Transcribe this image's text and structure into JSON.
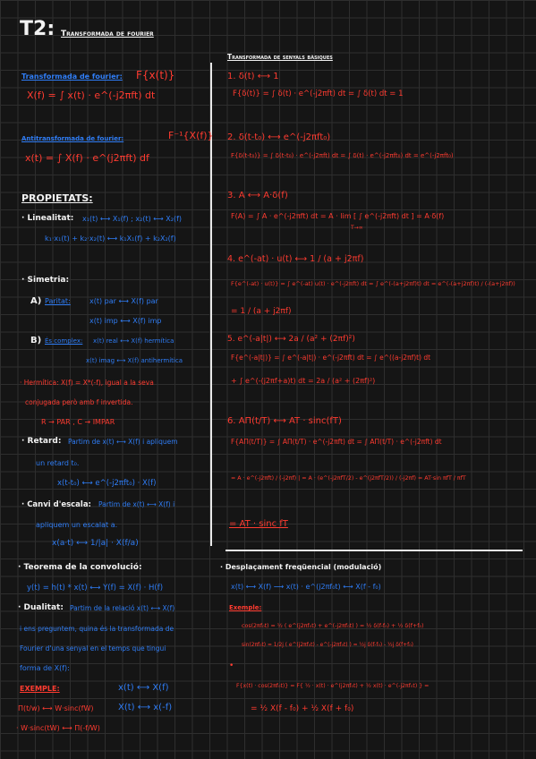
{
  "title": {
    "main": "T2:",
    "sub": "Transformada de fourier"
  },
  "left": {
    "ft_label": "Transformada de fourier:",
    "ft_symbol": "F{x(t)}",
    "ft_formula": "X(f) = ∫ x(t) · e^(-j2πft) dt",
    "ift_label": "Antitransformada de fourier:",
    "ift_symbol": "F⁻¹{X(f)}",
    "ift_formula": "x(t) = ∫ X(f) · e^(j2πft) df",
    "prop_title": "PROPIETATS:",
    "lin_label": "· Linealitat:",
    "lin_line1": "x₁(t) ⟷ X₁(f) ; x₂(t) ⟷ X₂(f)",
    "lin_line2": "k₁·x₁(t) + k₂·x₂(t) ⟷ k₁X₁(f) + k₂X₂(f)",
    "sim_label": "· Simetria:",
    "a_label": "A)",
    "a_title": "Paritat:",
    "a_line1": "x(t) par ⟷ X(f) par",
    "a_line2": "x(t) imp ⟷ X(f) imp",
    "b_label": "B)",
    "b_title": "És complex:",
    "b_line1": "x(t) real ⟷ X(f) hermítica",
    "b_line2": "x(t) imag ⟷ X(f) antihermítica",
    "herm_line1": "· Hermítica: X(f) = X*(-f), igual a la seva",
    "herm_line2": "conjugada però amb f invertida.",
    "herm_line3": "R → PAR , C → IMPAR",
    "ret_label": "· Retard:",
    "ret_line1": "Partim de x(t) ⟷ X(f) i apliquem",
    "ret_line2": "un retard t₀.",
    "ret_line3": "x(t-t₀) ⟷ e^(-j2πft₀) · X(f)",
    "esc_label": "· Canvi d'escala:",
    "esc_line1": "Partim de x(t) ⟷ X(f) i",
    "esc_line2": "apliquem un escalat a.",
    "esc_line3": "x(a·t) ⟷ 1/|a| · X(f/a)"
  },
  "right": {
    "title": "Transformada de senyals bàsiques",
    "i1_head": "1. δ(t) ⟷ 1",
    "i1_formula": "F{δ(t)} = ∫ δ(t) · e^(-j2πft) dt = ∫ δ(t) dt = 1",
    "i2_head": "2. δ(t-t₀) ⟷ e^(-j2πft₀)",
    "i2_formula": "F{δ(t-t₀)} = ∫ δ(t-t₀) · e^(-j2πft) dt = ∫ δ(t) · e^(-j2πft₀) dt = e^(-j2πft₀)",
    "i3_head": "3. A ⟷ A·δ(f)",
    "i3_formula": "F(A) = ∫ A · e^(-j2πft) dt = A · lim [ ∫ e^(-j2πft) dt ] = A·δ(f)",
    "i3_limit": "T→∞",
    "i4_head": "4. e^(-at) · u(t) ⟷ 1 / (a + j2πf)",
    "i4_formula": "F{e^(-at) · u(t)} = ∫ e^(-at) u(t) · e^(-j2πft) dt = ∫ e^(-(a+j2πf)t) dt = e^(-(a+j2πf)t) / (-(a+j2πf))",
    "i4_result": "= 1 / (a + j2πf)",
    "i5_head": "5. e^(-a|t|) ⟷ 2a / (a² + (2πf)²)",
    "i5_formula": "F{e^(-a|t|)} = ∫ e^(-a|t|) · e^(-j2πft) dt = ∫ e^((a-j2πf)t) dt",
    "i5_formula2": "+ ∫ e^(-(j2πf+a)t) dt = 2a / (a² + (2πf)²)",
    "i6_head": "6. AΠ(t/T) ⟷ AT · sinc(fT)",
    "i6_formula": "F{AΠ(t/T)} = ∫ AΠ(t/T) · e^(-j2πft) dt = ∫ AΠ(t/T) · e^(-j2πft) dt",
    "i6_formula2": "= A · e^(-j2πft) / (-j2πf) |  = A · (e^(-j2πfT/2) - e^(j2πfT/2)) / (-j2πf) = AT·sin πfT / πfT",
    "i6_result": "= AT · sinc fT"
  },
  "bottom_left": {
    "conv_title": "· Teorema de la convolució:",
    "conv_formula": "y(t) = h(t) * x(t) ⟷ Y(f) = X(f) · H(f)",
    "dual_label": "· Dualitat:",
    "dual_line1": "Partim de la relació x(t) ⟷ X(f)",
    "dual_line2": "i ens preguntem, quina és la transformada de",
    "dual_line3": "Fourier d'una senyal en el temps que tingui",
    "dual_line4": "forma de X(f):",
    "ex_label": "EXEMPLE:",
    "ex_line1": "x(t) ⟷ X(f)",
    "ex_line2a": "Π(t/w) ⟷ W·sinc(fW)",
    "ex_line2b": "X(t) ⟷ x(-f)",
    "ex_line3": "· W·sinc(tW) ⟷ Π(-f/W)"
  },
  "bottom_right": {
    "title": "· Desplaçament freqüencial (modulació)",
    "formula": "x(t) ⟷ X(f)  ⟶  x(t) · e^(j2πf₀t) ⟷ X(f - f₀)",
    "ex_label": "Exemple:",
    "cos_line": "cos(2πf₀t) = ½ ( e^(j2πf₀t) + e^(-j2πf₀t) ) = ½ δ(f-f₀) + ½ δ(f+f₀)",
    "sin_line": "sin(2πf₀t) = 1/2j ( e^(j2πf₀t) - e^(-j2πf₀t) ) = ½j δ(f-f₀) - ½j δ(f+f₀)",
    "bullet": "•",
    "mod_line1": "F{x(t) · cos(2πf₀t)} = F{ ½ · x(t) · e^(j2πf₀t) + ½ x(t) · e^(-j2πf₀t) } =",
    "mod_line2": "= ½ X(f - f₀) + ½ X(f + f₀)"
  }
}
